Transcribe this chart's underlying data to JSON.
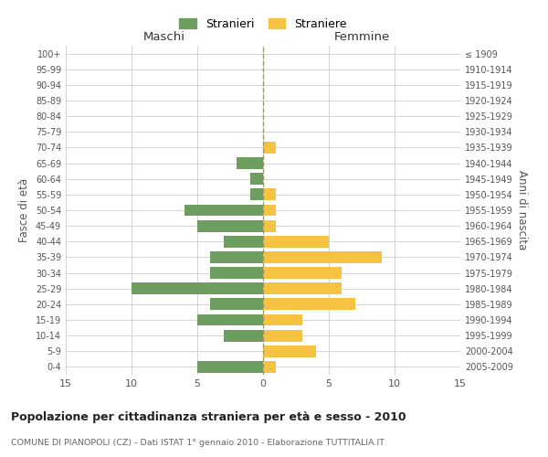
{
  "age_groups": [
    "0-4",
    "5-9",
    "10-14",
    "15-19",
    "20-24",
    "25-29",
    "30-34",
    "35-39",
    "40-44",
    "45-49",
    "50-54",
    "55-59",
    "60-64",
    "65-69",
    "70-74",
    "75-79",
    "80-84",
    "85-89",
    "90-94",
    "95-99",
    "100+"
  ],
  "birth_years": [
    "2005-2009",
    "2000-2004",
    "1995-1999",
    "1990-1994",
    "1985-1989",
    "1980-1984",
    "1975-1979",
    "1970-1974",
    "1965-1969",
    "1960-1964",
    "1955-1959",
    "1950-1954",
    "1945-1949",
    "1940-1944",
    "1935-1939",
    "1930-1934",
    "1925-1929",
    "1920-1924",
    "1915-1919",
    "1910-1914",
    "≤ 1909"
  ],
  "males": [
    5,
    0,
    3,
    5,
    4,
    10,
    4,
    4,
    3,
    5,
    6,
    1,
    1,
    2,
    0,
    0,
    0,
    0,
    0,
    0,
    0
  ],
  "females": [
    1,
    4,
    3,
    3,
    7,
    6,
    6,
    9,
    5,
    1,
    1,
    1,
    0,
    0,
    1,
    0,
    0,
    0,
    0,
    0,
    0
  ],
  "male_color": "#6e9e5f",
  "female_color": "#f5c242",
  "background_color": "#ffffff",
  "grid_color": "#cccccc",
  "title": "Popolazione per cittadinanza straniera per età e sesso - 2010",
  "subtitle": "COMUNE DI PIANOPOLI (CZ) - Dati ISTAT 1° gennaio 2010 - Elaborazione TUTTITALIA.IT",
  "xlabel_left": "Maschi",
  "xlabel_right": "Femmine",
  "ylabel_left": "Fasce di età",
  "ylabel_right": "Anni di nascita",
  "legend_males": "Stranieri",
  "legend_females": "Straniere",
  "xlim": 15,
  "bar_height": 0.75
}
